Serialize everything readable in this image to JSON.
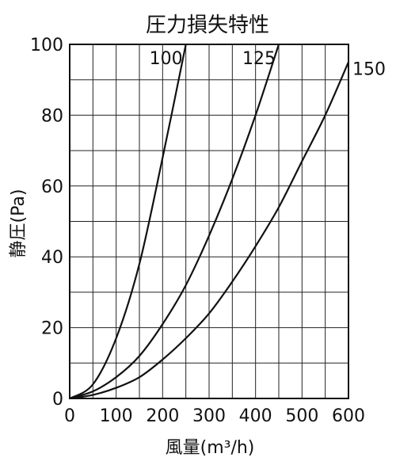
{
  "chart_data": {
    "type": "line",
    "title": "圧力損失特性",
    "xlabel": "風量(m³/h)",
    "ylabel": "静圧(Pa)",
    "xlim": [
      0,
      600
    ],
    "ylim": [
      0,
      100
    ],
    "x_major_ticks": [
      0,
      100,
      200,
      300,
      400,
      500,
      600
    ],
    "y_major_ticks": [
      0,
      20,
      40,
      60,
      80,
      100
    ],
    "x_gridlines": [
      0,
      50,
      100,
      150,
      200,
      250,
      300,
      350,
      400,
      450,
      500,
      550,
      600
    ],
    "y_gridlines": [
      0,
      10,
      20,
      30,
      40,
      50,
      60,
      70,
      80,
      90,
      100
    ],
    "grid": true,
    "line_color": "#111111",
    "series": [
      {
        "name": "100",
        "x": [
          0,
          50,
          100,
          150,
          200,
          250
        ],
        "y": [
          0,
          4,
          17,
          38,
          68,
          100
        ]
      },
      {
        "name": "125",
        "x": [
          0,
          50,
          100,
          150,
          200,
          250,
          300,
          350,
          400,
          450
        ],
        "y": [
          0,
          2,
          6,
          12,
          21,
          32,
          46,
          62,
          80,
          100
        ]
      },
      {
        "name": "150",
        "x": [
          0,
          50,
          100,
          150,
          200,
          250,
          300,
          350,
          400,
          450,
          500,
          550,
          600
        ],
        "y": [
          0,
          1,
          3,
          6,
          11,
          17,
          24,
          33,
          43,
          54,
          67,
          80,
          95
        ]
      }
    ]
  }
}
